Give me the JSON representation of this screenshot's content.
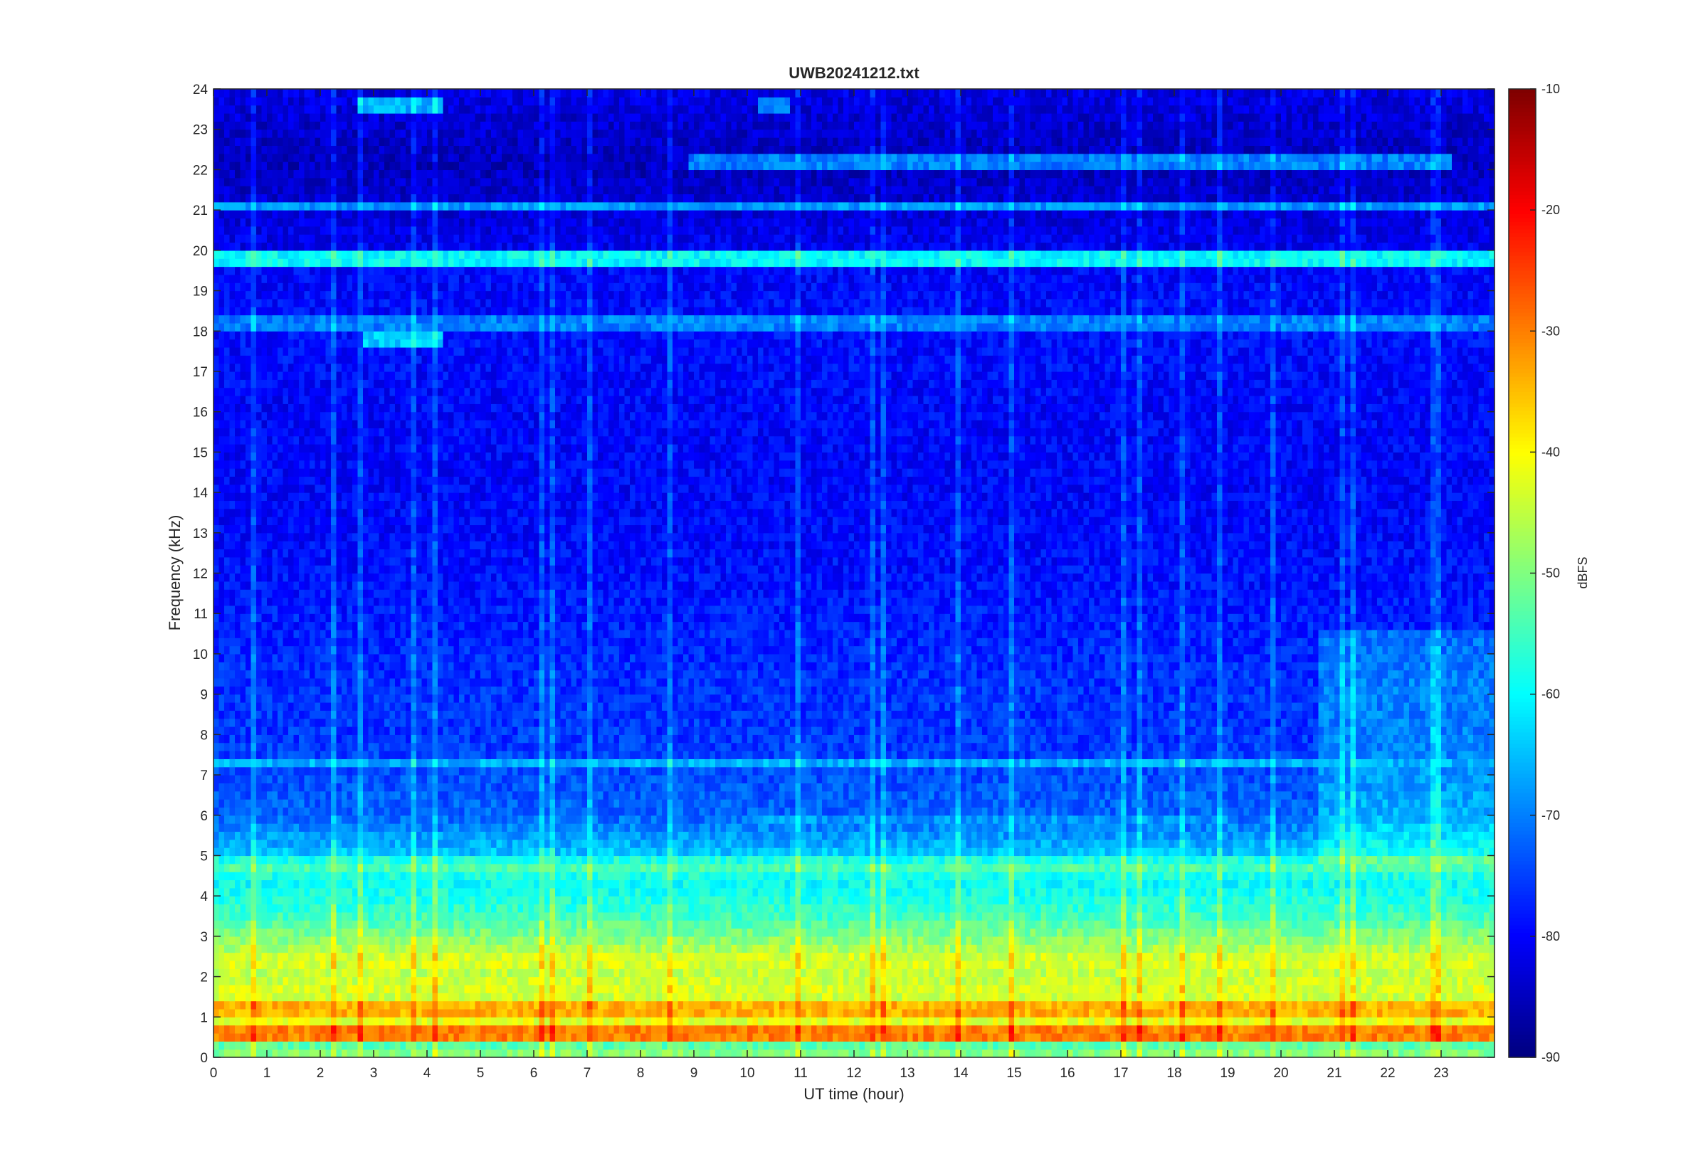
{
  "chart_data": {
    "type": "heatmap",
    "title": "UWB20241212.txt",
    "xlabel": "UT time (hour)",
    "ylabel": "Frequency (kHz)",
    "xlim": [
      0,
      24
    ],
    "ylim": [
      0,
      24
    ],
    "xticks": [
      "0",
      "1",
      "2",
      "3",
      "4",
      "5",
      "6",
      "7",
      "8",
      "9",
      "10",
      "11",
      "12",
      "13",
      "14",
      "15",
      "16",
      "17",
      "18",
      "19",
      "20",
      "21",
      "22",
      "23"
    ],
    "yticks": [
      "0",
      "1",
      "2",
      "3",
      "4",
      "5",
      "6",
      "7",
      "8",
      "9",
      "10",
      "11",
      "12",
      "13",
      "14",
      "15",
      "16",
      "17",
      "18",
      "19",
      "20",
      "21",
      "22",
      "23",
      "24"
    ],
    "colorbar": {
      "label": "dBFS",
      "range": [
        -90,
        -10
      ],
      "ticks": [
        "-10",
        "-20",
        "-30",
        "-40",
        "-50",
        "-60",
        "-70",
        "-80",
        "-90"
      ],
      "colormap": "jet"
    },
    "grid": false,
    "frequency_profile_dbfs": [
      [
        0.0,
        -48
      ],
      [
        0.3,
        -53
      ],
      [
        0.6,
        -36
      ],
      [
        0.8,
        -44
      ],
      [
        1.0,
        -40
      ],
      [
        1.2,
        -36
      ],
      [
        1.5,
        -44
      ],
      [
        1.8,
        -42
      ],
      [
        2.0,
        -46
      ],
      [
        2.4,
        -42
      ],
      [
        2.8,
        -48
      ],
      [
        3.2,
        -52
      ],
      [
        3.6,
        -56
      ],
      [
        4.0,
        -58
      ],
      [
        4.4,
        -60
      ],
      [
        4.8,
        -52
      ],
      [
        5.0,
        -64
      ],
      [
        5.5,
        -68
      ],
      [
        6.0,
        -72
      ],
      [
        7.0,
        -74
      ],
      [
        8.0,
        -76
      ],
      [
        9.0,
        -76
      ],
      [
        10.0,
        -77
      ],
      [
        12.0,
        -79
      ],
      [
        14.0,
        -80
      ],
      [
        16.0,
        -80
      ],
      [
        18.0,
        -79
      ],
      [
        19.5,
        -80
      ],
      [
        20.5,
        -82
      ],
      [
        22.0,
        -85
      ],
      [
        23.0,
        -84
      ],
      [
        24.0,
        -82
      ]
    ],
    "bands": [
      {
        "freq_khz": 19.8,
        "level_dbfs": -60,
        "start_hour": 0,
        "end_hour": 24
      },
      {
        "freq_khz": 21.1,
        "level_dbfs": -68,
        "start_hour": 0,
        "end_hour": 24
      },
      {
        "freq_khz": 18.2,
        "level_dbfs": -70,
        "start_hour": 0,
        "end_hour": 24
      },
      {
        "freq_khz": 22.2,
        "level_dbfs": -70,
        "start_hour": 8.9,
        "end_hour": 23.2
      },
      {
        "freq_khz": 17.8,
        "level_dbfs": -64,
        "start_hour": 2.8,
        "end_hour": 4.3
      },
      {
        "freq_khz": 23.6,
        "level_dbfs": -66,
        "start_hour": 2.7,
        "end_hour": 4.3
      },
      {
        "freq_khz": 23.6,
        "level_dbfs": -68,
        "start_hour": 10.2,
        "end_hour": 10.8
      },
      {
        "freq_khz": 7.3,
        "level_dbfs": -66,
        "start_hour": 0,
        "end_hour": 24
      },
      {
        "freq_khz": 5.9,
        "level_dbfs": -68,
        "start_hour": 10.2,
        "end_hour": 19.0
      },
      {
        "freq_khz": 0.6,
        "level_dbfs": -30,
        "start_hour": 0,
        "end_hour": 24
      },
      {
        "freq_khz": 1.2,
        "level_dbfs": -34,
        "start_hour": 0,
        "end_hour": 24
      }
    ],
    "regions": [
      {
        "name": "late-day mid-band enhancement",
        "freq_khz": [
          4.8,
          10.5
        ],
        "hours": [
          20.7,
          24
        ],
        "delta_db": 6
      }
    ]
  }
}
